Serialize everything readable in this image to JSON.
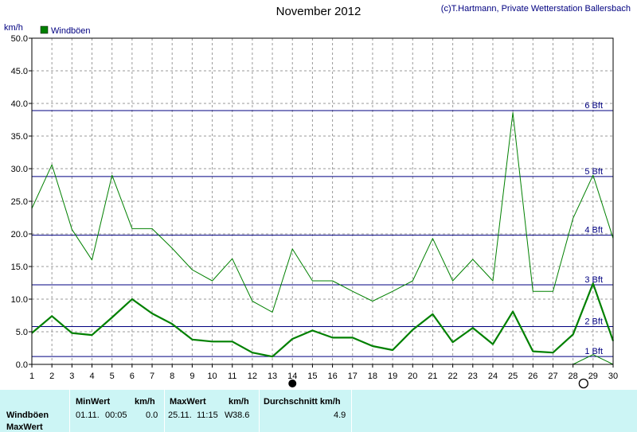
{
  "header": {
    "title": "November 2012",
    "copyright": "(c)T.Hartmann, Private Wetterstation Ballersbach"
  },
  "chart_data": {
    "type": "line",
    "title": "November 2012",
    "ylabel": "km/h",
    "xlabel": "",
    "ylim": [
      0,
      50
    ],
    "y_ticks": [
      "0.0",
      "5.0",
      "10.0",
      "15.0",
      "20.0",
      "25.0",
      "30.0",
      "35.0",
      "40.0",
      "45.0",
      "50.0"
    ],
    "categories": [
      "1",
      "2",
      "3",
      "4",
      "5",
      "6",
      "7",
      "8",
      "9",
      "10",
      "11",
      "12",
      "13",
      "14",
      "15",
      "16",
      "17",
      "18",
      "19",
      "20",
      "21",
      "22",
      "23",
      "24",
      "25",
      "26",
      "27",
      "28",
      "29",
      "30"
    ],
    "grid": true,
    "legend_position": "top-left",
    "legend": [
      {
        "label": "Windböen",
        "color": "#008000"
      }
    ],
    "series": [
      {
        "name": "Windböen",
        "role": "daily max gust",
        "color": "#008000",
        "values": [
          23.9,
          30.6,
          20.7,
          16.0,
          29.0,
          20.8,
          20.8,
          17.8,
          14.5,
          12.8,
          16.2,
          9.7,
          8.0,
          17.7,
          12.8,
          12.8,
          11.2,
          9.7,
          11.2,
          12.8,
          19.3,
          12.8,
          16.1,
          12.8,
          38.6,
          11.2,
          11.2,
          22.4,
          29.0,
          19.3
        ]
      },
      {
        "role": "daily mean gust",
        "color": "#008000",
        "values": [
          4.8,
          7.4,
          4.8,
          4.5,
          7.2,
          10.0,
          7.8,
          6.2,
          3.8,
          3.5,
          3.5,
          1.8,
          1.2,
          3.9,
          5.2,
          4.1,
          4.1,
          2.8,
          2.2,
          5.3,
          7.7,
          3.4,
          5.6,
          3.1,
          8.1,
          2.0,
          1.8,
          4.6,
          12.4,
          3.6
        ]
      },
      {
        "role": "daily min gust (partial)",
        "color": "#008000",
        "x": [
          "28",
          "29",
          "30"
        ],
        "values": [
          0.0,
          1.5,
          0.0
        ]
      }
    ],
    "reference_lines": [
      {
        "label": "1 Bft",
        "value": 1.2
      },
      {
        "label": "2 Bft",
        "value": 5.8
      },
      {
        "label": "3 Bft",
        "value": 12.2
      },
      {
        "label": "4 Bft",
        "value": 19.8
      },
      {
        "label": "5 Bft",
        "value": 28.8
      },
      {
        "label": "6 Bft",
        "value": 38.9
      }
    ],
    "markers": [
      {
        "x": "14",
        "shape": "filled-circle"
      },
      {
        "x": "29",
        "shape": "open-circle"
      }
    ]
  },
  "stats": {
    "row_labels": [
      "Windböen",
      "MaxWert"
    ],
    "min": {
      "header": "MinWert",
      "unit": "km/h",
      "date": "01.11.",
      "time": "00:05",
      "value": "0.0"
    },
    "max": {
      "header": "MaxWert",
      "unit": "km/h",
      "date": "25.11.",
      "time": "11:15",
      "dir": "W",
      "value": "38.6"
    },
    "avg": {
      "header": "Durchschnitt km/h",
      "value": "4.9"
    }
  }
}
